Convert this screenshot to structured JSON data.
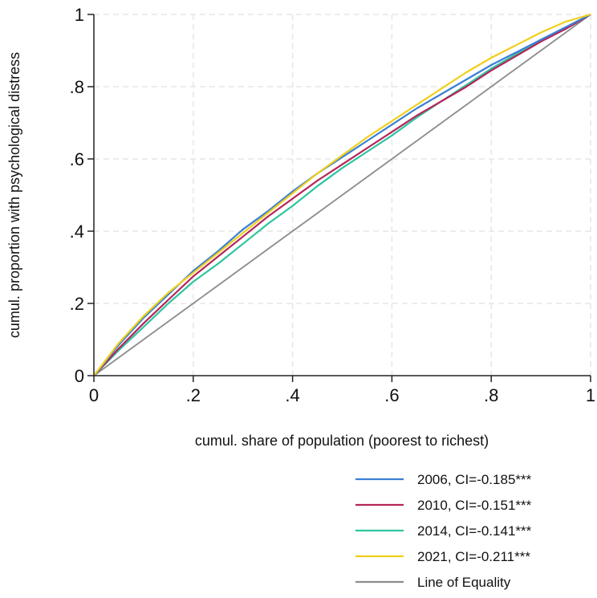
{
  "chart_data": {
    "type": "line",
    "title": "",
    "xlabel": "cumul. share of population (poorest to richest)",
    "ylabel": "cumul. proportion with psychological distress",
    "xlim": [
      0,
      1
    ],
    "ylim": [
      0,
      1
    ],
    "grid": true,
    "legend_position": "bottom-right",
    "x_ticks": [
      {
        "value": 0,
        "label": "0"
      },
      {
        "value": 0.2,
        "label": ".2"
      },
      {
        "value": 0.4,
        "label": ".4"
      },
      {
        "value": 0.6,
        "label": ".6"
      },
      {
        "value": 0.8,
        "label": ".8"
      },
      {
        "value": 1,
        "label": "1"
      }
    ],
    "y_ticks": [
      {
        "value": 0,
        "label": "0"
      },
      {
        "value": 0.2,
        "label": ".2"
      },
      {
        "value": 0.4,
        "label": ".4"
      },
      {
        "value": 0.6,
        "label": ".6"
      },
      {
        "value": 0.8,
        "label": ".8"
      },
      {
        "value": 1,
        "label": "1"
      }
    ],
    "x": [
      0,
      0.05,
      0.1,
      0.15,
      0.2,
      0.25,
      0.3,
      0.35,
      0.4,
      0.45,
      0.5,
      0.55,
      0.6,
      0.65,
      0.7,
      0.75,
      0.8,
      0.85,
      0.9,
      0.95,
      1.0
    ],
    "series": [
      {
        "name": "2006, CI=-0.185***",
        "color": "#3a7fd5",
        "values": [
          0,
          0.085,
          0.16,
          0.225,
          0.29,
          0.345,
          0.405,
          0.455,
          0.51,
          0.56,
          0.605,
          0.65,
          0.695,
          0.74,
          0.78,
          0.82,
          0.86,
          0.895,
          0.93,
          0.965,
          1.0
        ]
      },
      {
        "name": "2010, CI=-0.151***",
        "color": "#b5255a",
        "values": [
          0,
          0.075,
          0.145,
          0.21,
          0.275,
          0.33,
          0.385,
          0.44,
          0.49,
          0.54,
          0.585,
          0.63,
          0.675,
          0.72,
          0.76,
          0.8,
          0.845,
          0.885,
          0.925,
          0.96,
          1.0
        ]
      },
      {
        "name": "2014, CI=-0.141***",
        "color": "#2ec4a0",
        "values": [
          0,
          0.07,
          0.135,
          0.2,
          0.26,
          0.31,
          0.365,
          0.42,
          0.47,
          0.525,
          0.575,
          0.62,
          0.665,
          0.715,
          0.76,
          0.805,
          0.85,
          0.89,
          0.93,
          0.965,
          1.0
        ]
      },
      {
        "name": "2021, CI=-0.211***",
        "color": "#f0cf1a",
        "values": [
          0,
          0.09,
          0.165,
          0.23,
          0.285,
          0.34,
          0.395,
          0.45,
          0.505,
          0.56,
          0.61,
          0.66,
          0.705,
          0.75,
          0.795,
          0.84,
          0.88,
          0.915,
          0.95,
          0.98,
          1.0
        ]
      },
      {
        "name": "Line of Equality",
        "color": "#8c8c8c",
        "values": [
          0,
          0.05,
          0.1,
          0.15,
          0.2,
          0.25,
          0.3,
          0.35,
          0.4,
          0.45,
          0.5,
          0.55,
          0.6,
          0.65,
          0.7,
          0.75,
          0.8,
          0.85,
          0.9,
          0.95,
          1.0
        ]
      }
    ]
  }
}
